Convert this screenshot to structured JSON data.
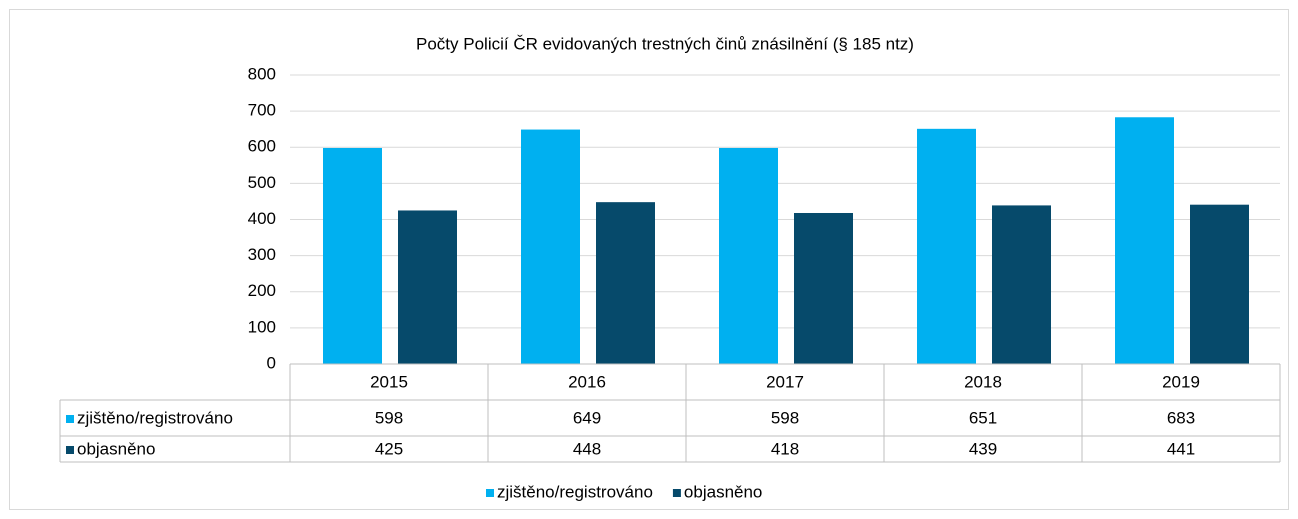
{
  "chart_data": {
    "type": "bar",
    "title": "Počty Policií ČR evidovaných trestných činů znásilnění (§ 185 ntz)",
    "categories": [
      "2015",
      "2016",
      "2017",
      "2018",
      "2019"
    ],
    "series": [
      {
        "name": "zjištěno/registrováno",
        "color": "#00b0f0",
        "values": [
          598,
          649,
          598,
          651,
          683
        ]
      },
      {
        "name": "objasněno",
        "color": "#064a6b",
        "values": [
          425,
          448,
          418,
          439,
          441
        ]
      }
    ],
    "ylim": [
      0,
      800
    ],
    "yticks": [
      0,
      100,
      200,
      300,
      400,
      500,
      600,
      700,
      800
    ],
    "grid": true,
    "legend": "bottom",
    "data_table": true
  }
}
